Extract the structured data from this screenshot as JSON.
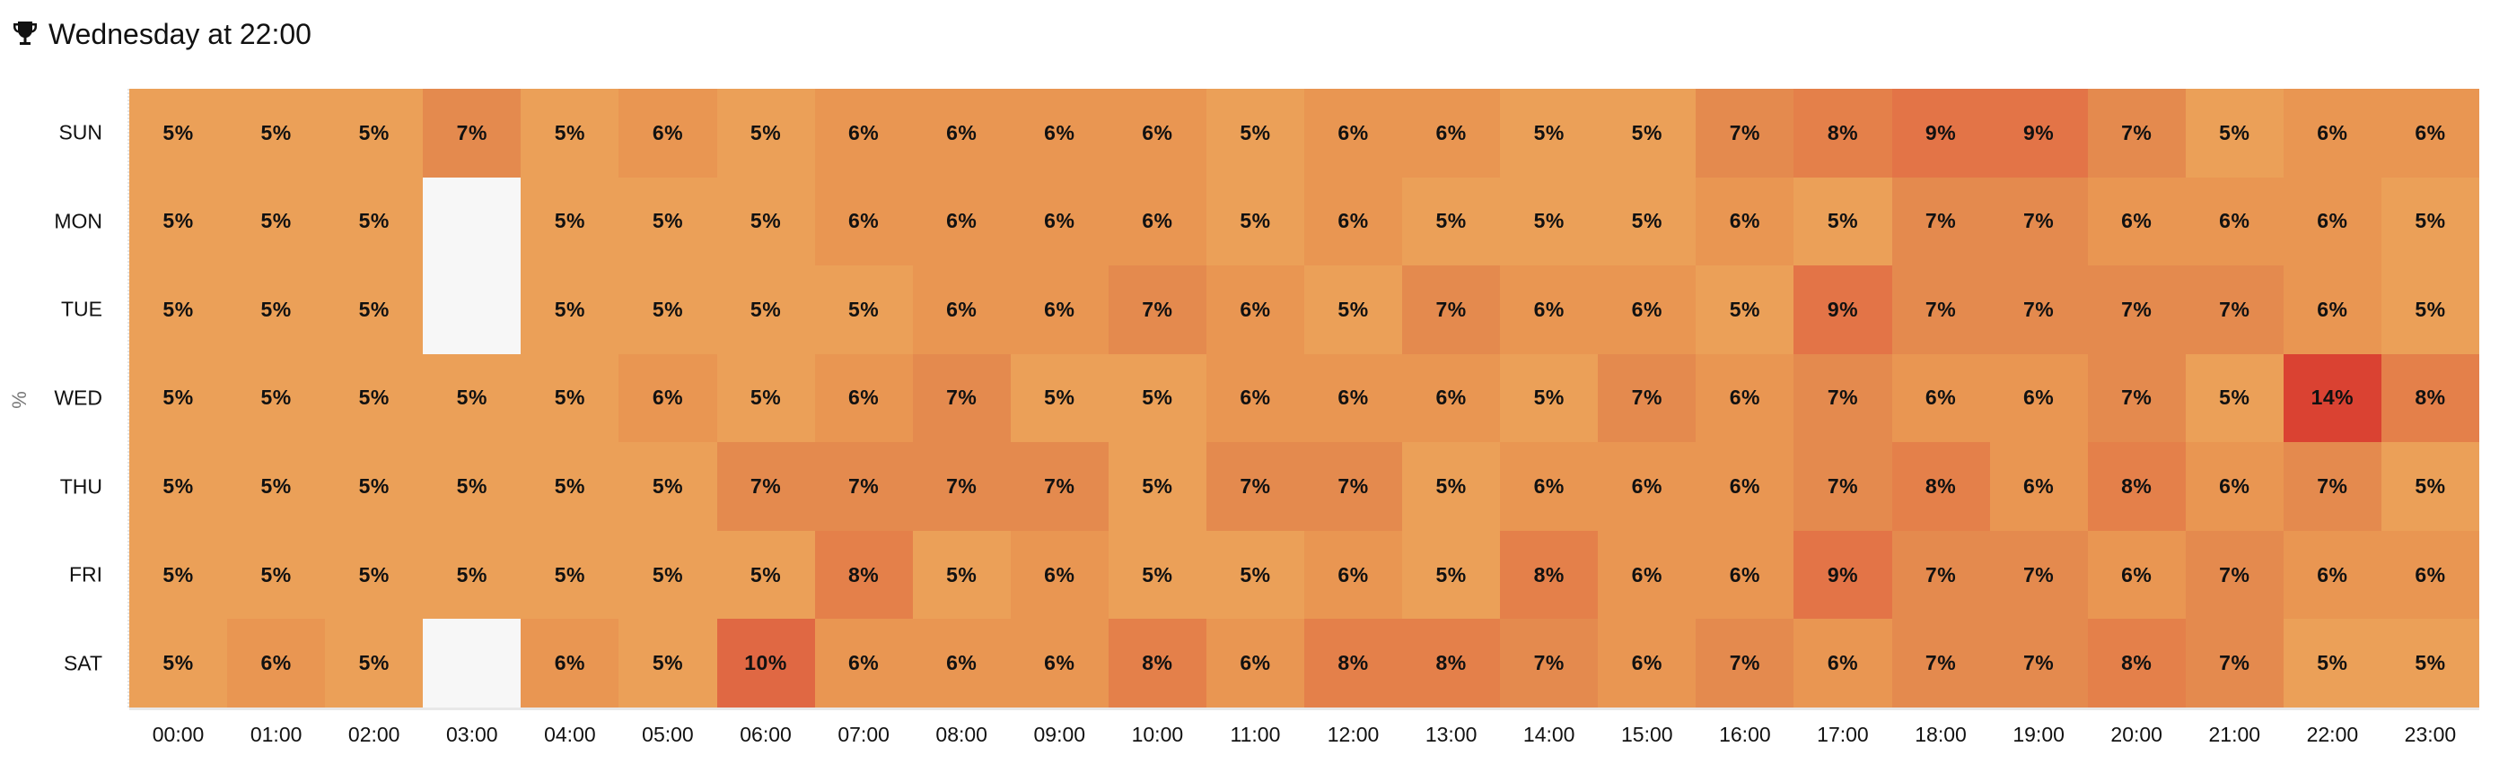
{
  "header": {
    "icon": "trophy-icon",
    "title": "Wednesday at 22:00"
  },
  "axis": {
    "y_title": "%"
  },
  "colors": {
    "empty": "#F7F7F7",
    "scale": {
      "5": "#EBA058",
      "6": "#E99652",
      "7": "#E48A4E",
      "8": "#E4804A",
      "9": "#E37447",
      "10": "#E06843",
      "14": "#DA4232"
    }
  },
  "chart_data": {
    "type": "heatmap",
    "title": "Wednesday at 22:00",
    "xlabel": "",
    "ylabel": "%",
    "x": [
      "00:00",
      "01:00",
      "02:00",
      "03:00",
      "04:00",
      "05:00",
      "06:00",
      "07:00",
      "08:00",
      "09:00",
      "10:00",
      "11:00",
      "12:00",
      "13:00",
      "14:00",
      "15:00",
      "16:00",
      "17:00",
      "18:00",
      "19:00",
      "20:00",
      "21:00",
      "22:00",
      "23:00"
    ],
    "y": [
      "SUN",
      "MON",
      "TUE",
      "WED",
      "THU",
      "FRI",
      "SAT"
    ],
    "values": [
      [
        5,
        5,
        5,
        7,
        5,
        6,
        5,
        6,
        6,
        6,
        6,
        5,
        6,
        6,
        5,
        5,
        7,
        8,
        9,
        9,
        7,
        5,
        6,
        6
      ],
      [
        5,
        5,
        5,
        null,
        5,
        5,
        5,
        6,
        6,
        6,
        6,
        5,
        6,
        5,
        5,
        5,
        6,
        5,
        7,
        7,
        6,
        6,
        6,
        5
      ],
      [
        5,
        5,
        5,
        null,
        5,
        5,
        5,
        5,
        6,
        6,
        7,
        6,
        5,
        7,
        6,
        6,
        5,
        9,
        7,
        7,
        7,
        7,
        6,
        5
      ],
      [
        5,
        5,
        5,
        5,
        5,
        6,
        5,
        6,
        7,
        5,
        5,
        6,
        6,
        6,
        5,
        7,
        6,
        7,
        6,
        6,
        7,
        5,
        14,
        8
      ],
      [
        5,
        5,
        5,
        5,
        5,
        5,
        7,
        7,
        7,
        7,
        5,
        7,
        7,
        5,
        6,
        6,
        6,
        7,
        8,
        6,
        8,
        6,
        7,
        5
      ],
      [
        5,
        5,
        5,
        5,
        5,
        5,
        5,
        8,
        5,
        6,
        5,
        5,
        6,
        5,
        8,
        6,
        6,
        9,
        7,
        7,
        6,
        7,
        6,
        6
      ],
      [
        5,
        6,
        5,
        null,
        6,
        5,
        10,
        6,
        6,
        6,
        8,
        6,
        8,
        8,
        7,
        6,
        7,
        6,
        7,
        7,
        8,
        7,
        5,
        5
      ]
    ],
    "value_suffix": "%",
    "highlight": {
      "day": "WED",
      "hour": "22:00",
      "value": 14
    },
    "grid": false,
    "legend": "none"
  }
}
